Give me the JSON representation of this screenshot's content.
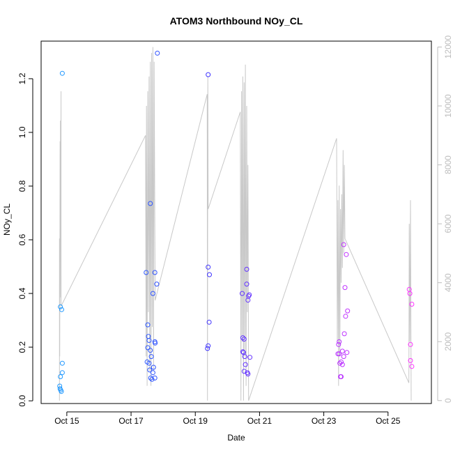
{
  "chart_data": {
    "type": "scatter",
    "title": "ATOM3 Northbound NOy_CL",
    "xlabel": "Date",
    "ylabel": "NOy_CL",
    "x_unit": "days (October)",
    "xlim": [
      14.2,
      26.35
    ],
    "ylim": [
      -0.01,
      1.34
    ],
    "y2lim": [
      -100,
      12200
    ],
    "x_ticks": [
      {
        "value": 15,
        "label": "Oct 15"
      },
      {
        "value": 17,
        "label": "Oct 17"
      },
      {
        "value": 19,
        "label": "Oct 19"
      },
      {
        "value": 21,
        "label": "Oct 21"
      },
      {
        "value": 23,
        "label": "Oct 23"
      },
      {
        "value": 25,
        "label": "Oct 25"
      }
    ],
    "y_ticks": [
      0.0,
      0.2,
      0.4,
      0.6,
      0.8,
      1.0,
      1.2
    ],
    "y_tick_labels": [
      "0.0",
      "0.2",
      "0.4",
      "0.6",
      "0.8",
      "1.0",
      "1.2"
    ],
    "y2_ticks": [
      0,
      2000,
      4000,
      6000,
      8000,
      10000,
      12000
    ],
    "y2_tick_labels": [
      "0",
      "2000",
      "4000",
      "6000",
      "8000",
      "10000",
      "12000"
    ],
    "grid": false,
    "series": [
      {
        "color": "#c8c8c8",
        "kind": "line-right-axis",
        "points": [
          [
            14.77,
            0
          ],
          [
            14.77,
            5500
          ],
          [
            14.78,
            1500
          ],
          [
            14.79,
            8800
          ],
          [
            14.8,
            6000
          ],
          [
            14.8,
            9500
          ],
          [
            14.81,
            3500
          ],
          [
            14.82,
            10500
          ],
          [
            14.82,
            3200
          ],
          [
            17.45,
            9000
          ],
          [
            17.47,
            1500
          ],
          [
            17.48,
            10000
          ],
          [
            17.5,
            500
          ],
          [
            17.52,
            10500
          ],
          [
            17.54,
            3000
          ],
          [
            17.56,
            11000
          ],
          [
            17.58,
            1000
          ],
          [
            17.6,
            11500
          ],
          [
            17.62,
            500
          ],
          [
            17.64,
            11800
          ],
          [
            17.66,
            2500
          ],
          [
            17.68,
            12000
          ],
          [
            17.7,
            1000
          ],
          [
            17.72,
            11500
          ],
          [
            17.75,
            3400
          ],
          [
            19.37,
            10400
          ],
          [
            19.38,
            0
          ],
          [
            19.39,
            11000
          ],
          [
            19.4,
            6500
          ],
          [
            20.4,
            9800
          ],
          [
            20.42,
            0
          ],
          [
            20.44,
            10500
          ],
          [
            20.46,
            2000
          ],
          [
            20.48,
            11000
          ],
          [
            20.5,
            0
          ],
          [
            20.52,
            10800
          ],
          [
            20.54,
            1500
          ],
          [
            20.56,
            11400
          ],
          [
            20.58,
            500
          ],
          [
            20.6,
            10000
          ],
          [
            20.62,
            3000
          ],
          [
            20.64,
            8000
          ],
          [
            20.66,
            0
          ],
          [
            23.4,
            8900
          ],
          [
            23.42,
            2000
          ],
          [
            23.44,
            6800
          ],
          [
            23.46,
            500
          ],
          [
            23.48,
            7300
          ],
          [
            23.5,
            1500
          ],
          [
            23.52,
            6500
          ],
          [
            23.54,
            4000
          ],
          [
            23.56,
            7000
          ],
          [
            23.58,
            4500
          ],
          [
            23.6,
            8500
          ],
          [
            23.62,
            5000
          ],
          [
            23.64,
            8000
          ],
          [
            23.66,
            5500
          ],
          [
            25.65,
            600
          ],
          [
            25.66,
            6000
          ],
          [
            25.68,
            2000
          ],
          [
            25.7,
            6800
          ],
          [
            25.72,
            0
          ]
        ]
      },
      {
        "color": "gradient",
        "kind": "points-left-axis",
        "color_from": "#1e9bff",
        "color_mid": "#3333ff",
        "color_to": "#ff33ff",
        "points": [
          [
            14.86,
            1.22
          ],
          [
            14.8,
            0.35
          ],
          [
            14.84,
            0.34
          ],
          [
            14.86,
            0.14
          ],
          [
            14.86,
            0.105
          ],
          [
            14.8,
            0.09
          ],
          [
            14.78,
            0.055
          ],
          [
            14.79,
            0.045
          ],
          [
            14.81,
            0.04
          ],
          [
            14.83,
            0.035
          ],
          [
            17.82,
            1.295
          ],
          [
            17.6,
            0.735
          ],
          [
            17.47,
            0.478
          ],
          [
            17.74,
            0.478
          ],
          [
            17.8,
            0.435
          ],
          [
            17.68,
            0.4
          ],
          [
            17.52,
            0.283
          ],
          [
            17.54,
            0.24
          ],
          [
            17.56,
            0.225
          ],
          [
            17.74,
            0.22
          ],
          [
            17.75,
            0.215
          ],
          [
            17.52,
            0.198
          ],
          [
            17.6,
            0.188
          ],
          [
            17.63,
            0.165
          ],
          [
            17.5,
            0.145
          ],
          [
            17.56,
            0.14
          ],
          [
            17.7,
            0.125
          ],
          [
            17.58,
            0.115
          ],
          [
            17.68,
            0.105
          ],
          [
            17.61,
            0.085
          ],
          [
            17.65,
            0.08
          ],
          [
            17.74,
            0.085
          ],
          [
            19.4,
            1.215
          ],
          [
            19.4,
            0.498
          ],
          [
            19.44,
            0.47
          ],
          [
            19.43,
            0.293
          ],
          [
            19.4,
            0.205
          ],
          [
            19.38,
            0.195
          ],
          [
            20.46,
            0.4
          ],
          [
            20.6,
            0.49
          ],
          [
            20.6,
            0.435
          ],
          [
            20.68,
            0.395
          ],
          [
            20.66,
            0.39
          ],
          [
            20.64,
            0.375
          ],
          [
            20.48,
            0.235
          ],
          [
            20.52,
            0.23
          ],
          [
            20.48,
            0.183
          ],
          [
            20.5,
            0.18
          ],
          [
            20.54,
            0.165
          ],
          [
            20.7,
            0.162
          ],
          [
            20.56,
            0.135
          ],
          [
            20.52,
            0.11
          ],
          [
            20.62,
            0.105
          ],
          [
            20.64,
            0.1
          ],
          [
            23.62,
            0.582
          ],
          [
            23.7,
            0.545
          ],
          [
            23.66,
            0.422
          ],
          [
            23.74,
            0.335
          ],
          [
            23.68,
            0.315
          ],
          [
            23.64,
            0.25
          ],
          [
            23.48,
            0.22
          ],
          [
            23.46,
            0.21
          ],
          [
            23.58,
            0.185
          ],
          [
            23.72,
            0.18
          ],
          [
            23.44,
            0.175
          ],
          [
            23.48,
            0.175
          ],
          [
            23.62,
            0.165
          ],
          [
            23.54,
            0.145
          ],
          [
            23.5,
            0.14
          ],
          [
            23.58,
            0.135
          ],
          [
            23.52,
            0.09
          ],
          [
            23.54,
            0.09
          ],
          [
            25.66,
            0.415
          ],
          [
            25.68,
            0.4
          ],
          [
            25.74,
            0.36
          ],
          [
            25.7,
            0.21
          ],
          [
            25.7,
            0.15
          ],
          [
            25.74,
            0.128
          ]
        ]
      }
    ]
  }
}
